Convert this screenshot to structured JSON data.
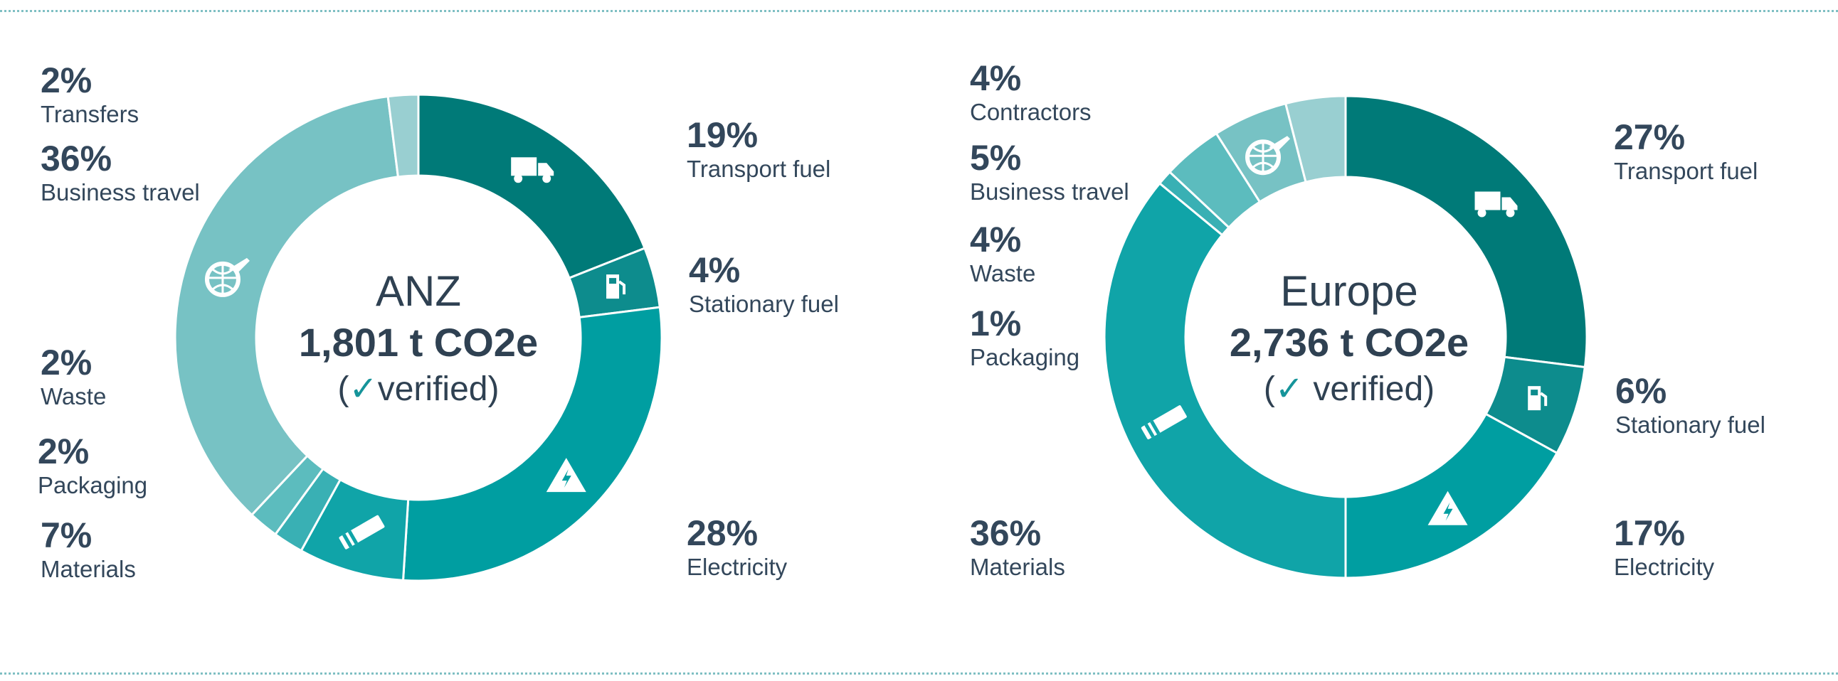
{
  "colors": {
    "transport_fuel": "#007a78",
    "stationary_fuel": "#0d8c8d",
    "electricity": "#009ea1",
    "materials": "#10a4a8",
    "packaging": "#39b0b4",
    "waste": "#5cbcbe",
    "business_travel": "#77c2c4",
    "transfers": "#99cfd1",
    "contractors": "#99cfd1"
  },
  "chart_data": [
    {
      "type": "pie",
      "title": "ANZ",
      "center": {
        "region": "ANZ",
        "total": "1,801 t CO2e",
        "verified_prefix": "(",
        "check": "✓",
        "verified_text": "verified)"
      },
      "slices": [
        {
          "key": "transport_fuel",
          "label": "Transport fuel",
          "pct_label": "19%",
          "value": 19,
          "icon": "truck-icon"
        },
        {
          "key": "stationary_fuel",
          "label": "Stationary fuel",
          "pct_label": "4%",
          "value": 4,
          "icon": "fuel-pump-icon"
        },
        {
          "key": "electricity",
          "label": "Electricity",
          "pct_label": "28%",
          "value": 28,
          "icon": "electricity-icon"
        },
        {
          "key": "materials",
          "label": "Materials",
          "pct_label": "7%",
          "value": 7,
          "icon": "materials-icon"
        },
        {
          "key": "packaging",
          "label": "Packaging",
          "pct_label": "2%",
          "value": 2
        },
        {
          "key": "waste",
          "label": "Waste",
          "pct_label": "2%",
          "value": 2
        },
        {
          "key": "business_travel",
          "label": "Business travel",
          "pct_label": "36%",
          "value": 36,
          "icon": "travel-globe-icon"
        },
        {
          "key": "transfers",
          "label": "Transfers",
          "pct_label": "2%",
          "value": 2
        }
      ]
    },
    {
      "type": "pie",
      "title": "Europe",
      "center": {
        "region": "Europe",
        "total": "2,736 t CO2e",
        "verified_prefix": "(",
        "check": "✓",
        "verified_text": " verified)"
      },
      "slices": [
        {
          "key": "transport_fuel",
          "label": "Transport fuel",
          "pct_label": "27%",
          "value": 27,
          "icon": "truck-icon"
        },
        {
          "key": "stationary_fuel",
          "label": "Stationary fuel",
          "pct_label": "6%",
          "value": 6,
          "icon": "fuel-pump-icon"
        },
        {
          "key": "electricity",
          "label": "Electricity",
          "pct_label": "17%",
          "value": 17,
          "icon": "electricity-icon"
        },
        {
          "key": "materials",
          "label": "Materials",
          "pct_label": "36%",
          "value": 36,
          "icon": "materials-icon"
        },
        {
          "key": "packaging",
          "label": "Packaging",
          "pct_label": "1%",
          "value": 1
        },
        {
          "key": "waste",
          "label": "Waste",
          "pct_label": "4%",
          "value": 4
        },
        {
          "key": "business_travel",
          "label": "Business travel",
          "pct_label": "5%",
          "value": 5,
          "icon": "travel-globe-icon"
        },
        {
          "key": "contractors",
          "label": "Contractors",
          "pct_label": "4%",
          "value": 4
        }
      ]
    }
  ]
}
